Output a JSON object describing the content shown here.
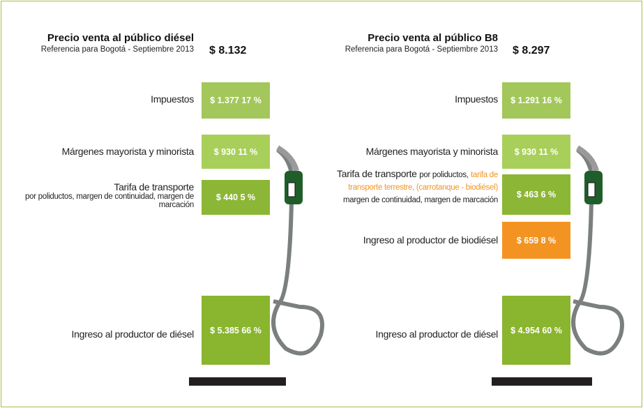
{
  "panels": [
    {
      "title": "Precio venta al público diésel",
      "subtitle": "Referencia para Bogotá - Septiembre 2013",
      "total": "$ 8.132",
      "items": [
        {
          "label": "Impuestos",
          "value": "$ 1.377 17 %"
        },
        {
          "label": "Márgenes mayorista y minorista",
          "value": "$ 930 11 %"
        },
        {
          "label": "Tarifa de transporte",
          "detail": "por poliductos, margen de continuidad, margen de marcación",
          "value": "$ 440 5 %"
        },
        {
          "label": "Ingreso al productor de diésel",
          "value": "$ 5.385 66 %"
        }
      ]
    },
    {
      "title": "Precio venta al público B8",
      "subtitle": "Referencia para Bogotá - Septiembre 2013",
      "total": "$ 8.297",
      "items": [
        {
          "label": "Impuestos",
          "value": "$ 1.291 16 %"
        },
        {
          "label": "Márgenes mayorista y minorista",
          "value": "$ 930 11 %"
        },
        {
          "label": "Tarifa de transporte",
          "detail": "por poliductos,",
          "detail_highlight": "tarifa de transporte terrestre, (carrotanque - biodiésel)",
          "detail_end": "margen de continuidad, margen de marcación",
          "value": "$ 463 6 %"
        },
        {
          "label": "Ingreso al productor de biodiésel",
          "value": "$ 659 8 %"
        },
        {
          "label": "Ingreso al productor de diésel",
          "value": "$ 4.954 60 %"
        }
      ]
    }
  ]
}
